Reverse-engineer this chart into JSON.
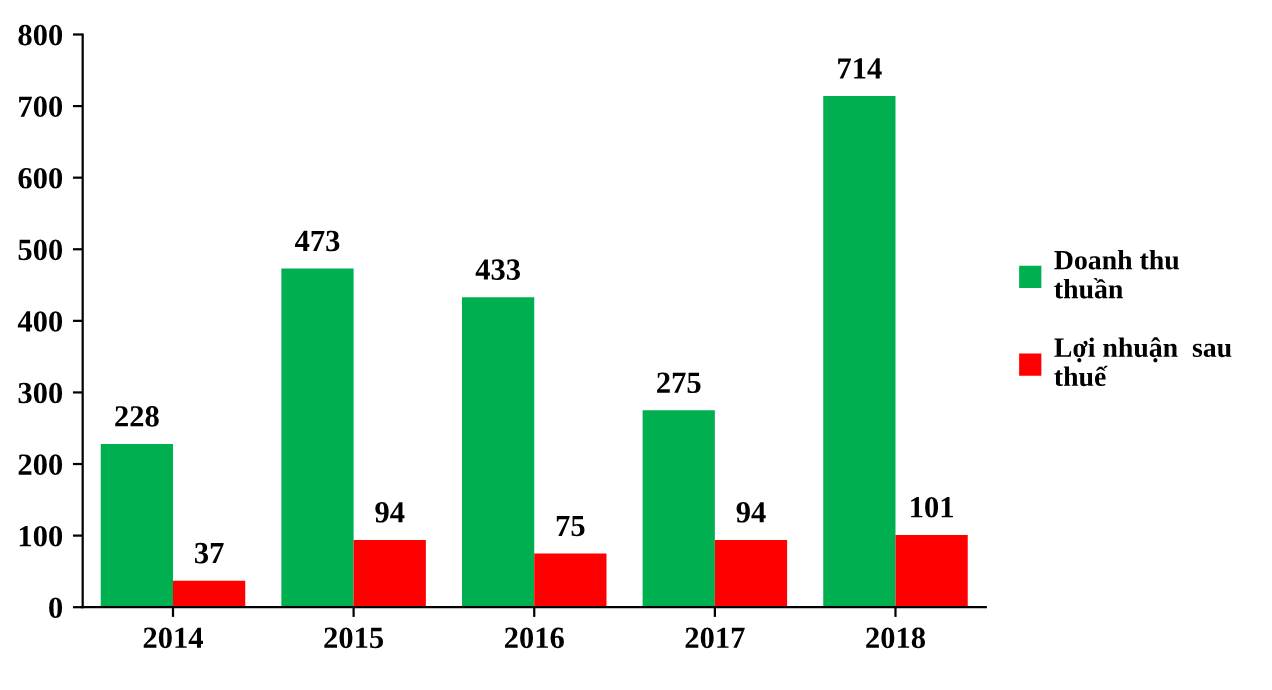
{
  "chart_data": {
    "type": "bar",
    "categories": [
      "2014",
      "2015",
      "2016",
      "2017",
      "2018"
    ],
    "series": [
      {
        "name": "Doanh thu\nthuần",
        "color": "#00b050",
        "values": [
          228,
          473,
          433,
          275,
          714
        ]
      },
      {
        "name": "Lợi nhuận  sau\nthuế",
        "color": "#ff0000",
        "values": [
          37,
          94,
          75,
          94,
          101
        ]
      }
    ],
    "ylim": [
      0,
      800
    ],
    "yticks": [
      0,
      100,
      200,
      300,
      400,
      500,
      600,
      700,
      800
    ],
    "data_labels": true,
    "grid": false,
    "legend": "right"
  }
}
